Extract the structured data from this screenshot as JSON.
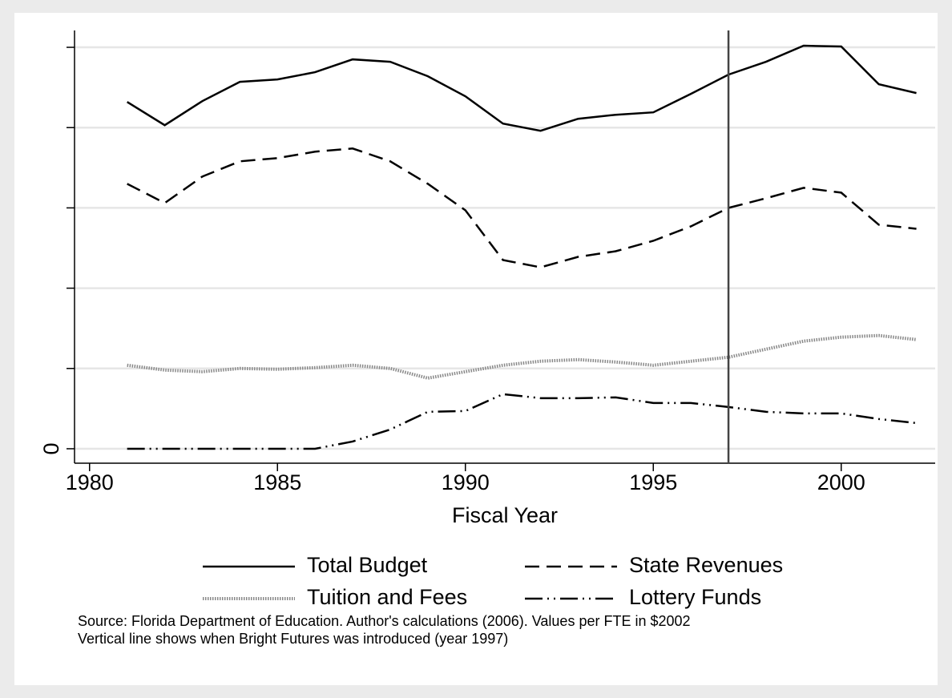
{
  "chart_data": {
    "type": "line",
    "x": [
      1981,
      1982,
      1983,
      1984,
      1985,
      1986,
      1987,
      1988,
      1989,
      1990,
      1991,
      1992,
      1993,
      1994,
      1995,
      1996,
      1997,
      1998,
      1999,
      2000,
      2001,
      2002
    ],
    "series": [
      {
        "name": "Total Budget",
        "color": "#000000",
        "dash": "solid",
        "values": [
          4.32,
          4.03,
          4.33,
          4.57,
          4.6,
          4.69,
          4.85,
          4.82,
          4.64,
          4.39,
          4.05,
          3.96,
          4.11,
          4.16,
          4.19,
          4.42,
          4.66,
          4.82,
          5.02,
          5.01,
          4.54,
          4.43
        ]
      },
      {
        "name": "State Revenues",
        "color": "#000000",
        "dash": "dashed",
        "values": [
          3.3,
          3.06,
          3.39,
          3.58,
          3.62,
          3.7,
          3.74,
          3.58,
          3.3,
          2.97,
          2.35,
          2.26,
          2.39,
          2.46,
          2.59,
          2.77,
          3.0,
          3.12,
          3.25,
          3.19,
          2.79,
          2.74
        ]
      },
      {
        "name": "Tuition and Fees",
        "color": "#888888",
        "dash": "dotted",
        "values": [
          1.04,
          0.98,
          0.96,
          1.0,
          0.99,
          1.01,
          1.04,
          1.0,
          0.88,
          0.96,
          1.04,
          1.09,
          1.11,
          1.08,
          1.04,
          1.09,
          1.14,
          1.24,
          1.34,
          1.39,
          1.41,
          1.36
        ]
      },
      {
        "name": "Lottery Funds",
        "color": "#000000",
        "dash": "dashdot",
        "values": [
          0,
          0,
          0,
          0,
          0,
          0,
          0.09,
          0.24,
          0.46,
          0.47,
          0.68,
          0.63,
          0.63,
          0.64,
          0.57,
          0.57,
          0.52,
          0.46,
          0.44,
          0.44,
          0.37,
          0.32
        ]
      }
    ],
    "xlabel": "Fiscal Year",
    "xlim": [
      1979.6,
      2002.5
    ],
    "xticks": [
      1980,
      1985,
      1990,
      1995,
      2000
    ],
    "ylim": [
      -0.18,
      5.21
    ],
    "yticks": [
      0,
      {
        "value": 1
      },
      {
        "value": 2
      },
      {
        "value": 3
      },
      {
        "value": 4
      },
      {
        "value": 5
      }
    ],
    "grid": true,
    "vline": 1997,
    "vline_color": "#444444",
    "notes": [
      "Source: Florida Department of Education. Author's calculations (2006). Values per FTE in $2002",
      "Vertical line shows when Bright Futures was introduced (year 1997)"
    ]
  }
}
